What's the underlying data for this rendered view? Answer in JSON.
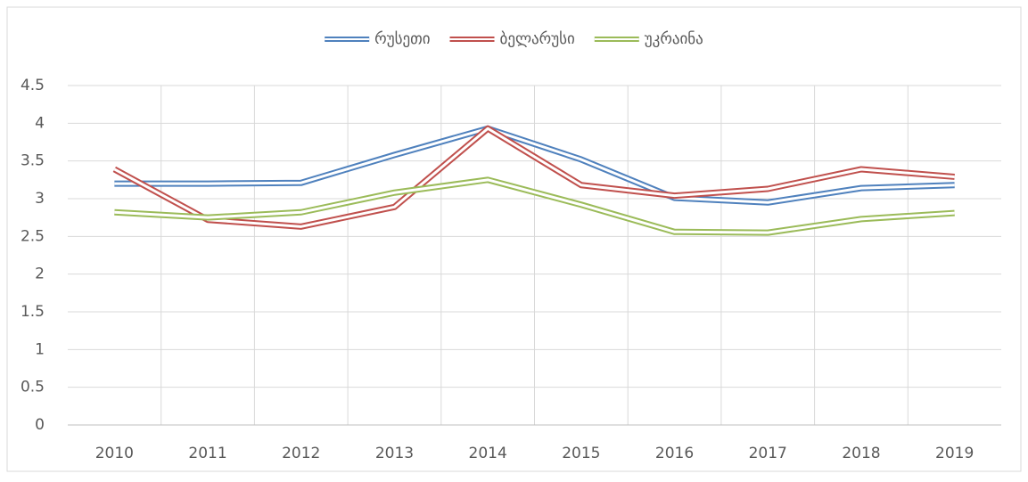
{
  "chart_data": {
    "type": "line",
    "categories": [
      "2010",
      "2011",
      "2012",
      "2013",
      "2014",
      "2015",
      "2016",
      "2017",
      "2018",
      "2019"
    ],
    "series": [
      {
        "name": "რუსეთი",
        "color": "#4f81bd",
        "values": [
          3.2,
          3.2,
          3.21,
          3.58,
          3.93,
          3.52,
          3.01,
          2.95,
          3.14,
          3.18
        ]
      },
      {
        "name": "ბელარუსი",
        "color": "#c0504d",
        "values": [
          3.39,
          2.72,
          2.63,
          2.89,
          3.93,
          3.18,
          3.04,
          3.13,
          3.39,
          3.29
        ]
      },
      {
        "name": "უკრაინა",
        "color": "#9bbb59",
        "values": [
          2.82,
          2.75,
          2.82,
          3.08,
          3.25,
          2.92,
          2.56,
          2.55,
          2.73,
          2.81
        ]
      }
    ],
    "ylim": [
      0,
      4.5
    ],
    "yticks": [
      0,
      0.5,
      1,
      1.5,
      2,
      2.5,
      3,
      3.5,
      4,
      4.5
    ],
    "grid": true,
    "legend": "top"
  }
}
